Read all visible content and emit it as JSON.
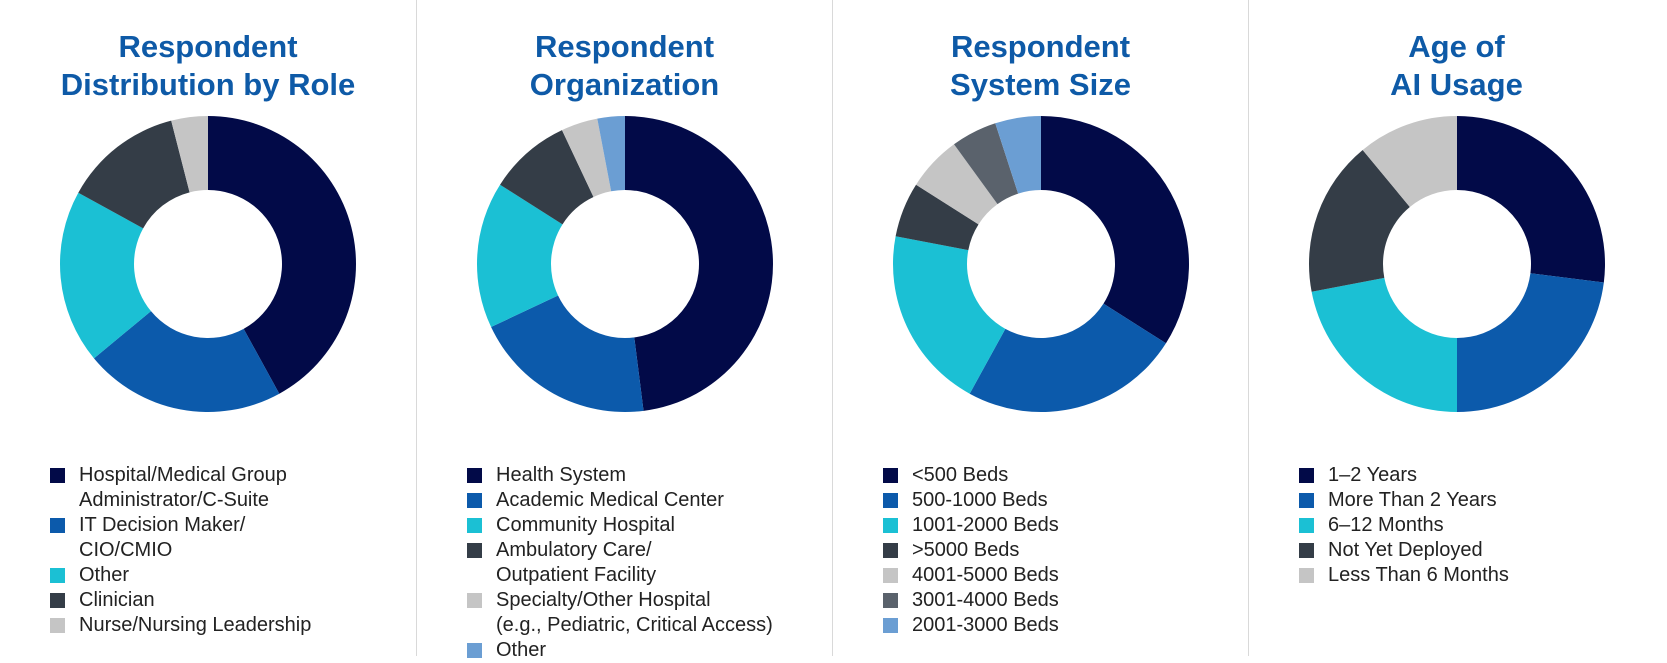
{
  "chart_data": [
    {
      "type": "pie",
      "variant": "donut",
      "title": [
        "Respondent",
        "Distribution by Role"
      ],
      "legend_position": "bottom",
      "slices": [
        {
          "label": [
            "Hospital/Medical Group",
            "Administrator/C-Suite"
          ],
          "value": 42,
          "color": "#020a48"
        },
        {
          "label": [
            "IT Decision Maker/",
            "CIO/CMIO"
          ],
          "value": 22,
          "color": "#0c5aab"
        },
        {
          "label": [
            "Other"
          ],
          "value": 19,
          "color": "#1bc0d4"
        },
        {
          "label": [
            "Clinician"
          ],
          "value": 13,
          "color": "#343d47"
        },
        {
          "label": [
            "Nurse/Nursing Leadership"
          ],
          "value": 4,
          "color": "#c5c5c5"
        }
      ]
    },
    {
      "type": "pie",
      "variant": "donut",
      "title": [
        "Respondent",
        "Organization"
      ],
      "legend_position": "bottom",
      "slices": [
        {
          "label": [
            "Health System"
          ],
          "value": 48,
          "color": "#020a48"
        },
        {
          "label": [
            "Academic Medical Center"
          ],
          "value": 20,
          "color": "#0c5aab"
        },
        {
          "label": [
            "Community Hospital"
          ],
          "value": 16,
          "color": "#1bc0d4"
        },
        {
          "label": [
            "Ambulatory Care/",
            "Outpatient Facility"
          ],
          "value": 9,
          "color": "#343d47"
        },
        {
          "label": [
            "Specialty/Other Hospital",
            "(e.g., Pediatric, Critical Access)"
          ],
          "value": 4,
          "color": "#c5c5c5"
        },
        {
          "label": [
            "Other"
          ],
          "value": 3,
          "color": "#6b9ed3"
        }
      ]
    },
    {
      "type": "pie",
      "variant": "donut",
      "title": [
        "Respondent",
        "System Size"
      ],
      "legend_position": "bottom",
      "slices": [
        {
          "label": [
            "<500 Beds"
          ],
          "value": 34,
          "color": "#020a48"
        },
        {
          "label": [
            "500-1000 Beds"
          ],
          "value": 24,
          "color": "#0c5aab"
        },
        {
          "label": [
            "1001-2000 Beds"
          ],
          "value": 20,
          "color": "#1bc0d4"
        },
        {
          "label": [
            ">5000 Beds"
          ],
          "value": 6,
          "color": "#343d47"
        },
        {
          "label": [
            "4001-5000 Beds"
          ],
          "value": 6,
          "color": "#c5c5c5"
        },
        {
          "label": [
            "3001-4000 Beds"
          ],
          "value": 5,
          "color": "#5a626c"
        },
        {
          "label": [
            "2001-3000 Beds"
          ],
          "value": 5,
          "color": "#6b9ed3"
        }
      ]
    },
    {
      "type": "pie",
      "variant": "donut",
      "title": [
        "Age of",
        "AI Usage"
      ],
      "legend_position": "bottom",
      "slices": [
        {
          "label": [
            "1–2 Years"
          ],
          "value": 27,
          "color": "#020a48"
        },
        {
          "label": [
            "More Than 2 Years"
          ],
          "value": 23,
          "color": "#0c5aab"
        },
        {
          "label": [
            "6–12 Months"
          ],
          "value": 22,
          "color": "#1bc0d4"
        },
        {
          "label": [
            "Not Yet Deployed"
          ],
          "value": 17,
          "color": "#343d47"
        },
        {
          "label": [
            "Less Than 6 Months"
          ],
          "value": 11,
          "color": "#c5c5c5"
        }
      ]
    }
  ]
}
